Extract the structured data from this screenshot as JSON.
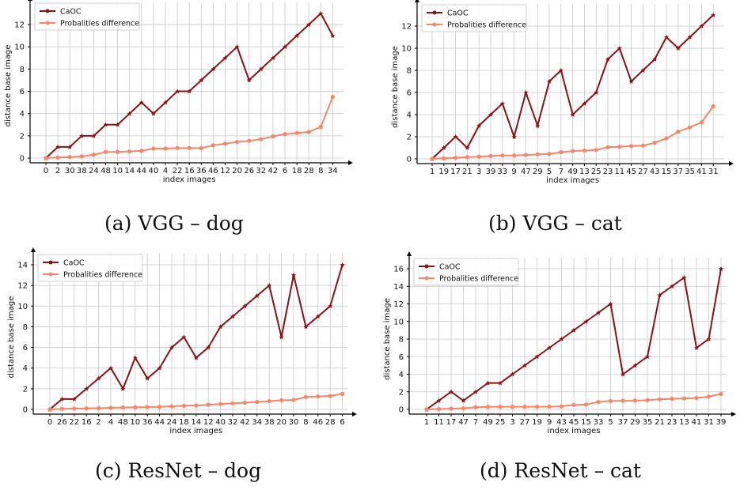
{
  "colors": {
    "caoc": "#8b1118",
    "prob": "#f7856a",
    "grid": "#c8c8c8",
    "axis": "#000000"
  },
  "chart_data": [
    {
      "type": "line",
      "caption": "(a) VGG – dog",
      "xlabel": "index images",
      "ylabel": "distance base image",
      "ylim": [
        0,
        13
      ],
      "yticks": [
        0,
        2,
        4,
        6,
        8,
        10,
        12
      ],
      "grid": true,
      "legend": "top-left",
      "categories": [
        "0",
        "2",
        "30",
        "38",
        "24",
        "48",
        "10",
        "14",
        "44",
        "40",
        "4",
        "22",
        "16",
        "36",
        "46",
        "12",
        "20",
        "26",
        "32",
        "42",
        "6",
        "18",
        "28",
        "8",
        "34"
      ],
      "series": [
        {
          "name": "CaOC",
          "values": [
            0,
            1,
            1,
            2,
            2,
            3,
            3,
            4,
            5,
            4,
            5,
            6,
            6,
            7,
            8,
            9,
            10,
            7,
            8,
            9,
            10,
            11,
            12,
            13,
            11
          ]
        },
        {
          "name": "Probalities difference",
          "values": [
            0,
            0.05,
            0.1,
            0.15,
            0.3,
            0.55,
            0.55,
            0.6,
            0.65,
            0.85,
            0.85,
            0.9,
            0.9,
            0.9,
            1.15,
            1.3,
            1.45,
            1.55,
            1.7,
            1.95,
            2.15,
            2.25,
            2.35,
            2.8,
            5.5
          ]
        }
      ]
    },
    {
      "type": "line",
      "caption": "(b) VGG – cat",
      "xlabel": "index images",
      "ylabel": "distance base image",
      "ylim": [
        0,
        13
      ],
      "yticks": [
        0,
        2,
        4,
        6,
        8,
        10,
        12
      ],
      "grid": true,
      "legend": "top-left",
      "categories": [
        "1",
        "19",
        "17",
        "21",
        "3",
        "39",
        "33",
        "9",
        "47",
        "29",
        "5",
        "7",
        "49",
        "13",
        "25",
        "23",
        "11",
        "45",
        "27",
        "43",
        "15",
        "37",
        "35",
        "41",
        "31"
      ],
      "series": [
        {
          "name": "CaOC",
          "values": [
            0,
            1,
            2,
            1,
            3,
            4,
            5,
            2,
            6,
            3,
            7,
            8,
            4,
            5,
            6,
            9,
            10,
            7,
            8,
            9,
            11,
            10,
            11,
            12,
            13
          ]
        },
        {
          "name": "Probalities difference",
          "values": [
            0,
            0.05,
            0.1,
            0.15,
            0.2,
            0.25,
            0.3,
            0.3,
            0.35,
            0.4,
            0.45,
            0.6,
            0.7,
            0.75,
            0.8,
            1.05,
            1.1,
            1.15,
            1.2,
            1.45,
            1.85,
            2.45,
            2.85,
            3.3,
            4.75
          ]
        }
      ]
    },
    {
      "type": "line",
      "caption": "(c) ResNet – dog",
      "xlabel": "index images",
      "ylabel": "distance base image",
      "ylim": [
        0,
        14
      ],
      "yticks": [
        0,
        2,
        4,
        6,
        8,
        10,
        12,
        14
      ],
      "grid": true,
      "legend": "top-left",
      "categories": [
        "0",
        "26",
        "22",
        "16",
        "2",
        "4",
        "48",
        "10",
        "36",
        "44",
        "24",
        "18",
        "14",
        "12",
        "40",
        "32",
        "42",
        "34",
        "38",
        "20",
        "30",
        "8",
        "46",
        "28",
        "6"
      ],
      "series": [
        {
          "name": "CaOC",
          "values": [
            0,
            1,
            1,
            2,
            3,
            4,
            2,
            5,
            3,
            4,
            6,
            7,
            5,
            6,
            8,
            9,
            10,
            11,
            12,
            7,
            13,
            8,
            9,
            10,
            14
          ]
        },
        {
          "name": "Probalities difference",
          "values": [
            0,
            0.05,
            0.08,
            0.1,
            0.12,
            0.15,
            0.18,
            0.2,
            0.22,
            0.25,
            0.3,
            0.35,
            0.38,
            0.45,
            0.52,
            0.58,
            0.65,
            0.72,
            0.8,
            0.88,
            0.92,
            1.2,
            1.25,
            1.3,
            1.5
          ]
        }
      ]
    },
    {
      "type": "line",
      "caption": "(d) ResNet – cat",
      "xlabel": "index images",
      "ylabel": "distance base image",
      "ylim": [
        0,
        16
      ],
      "yticks": [
        0,
        2,
        4,
        6,
        8,
        10,
        12,
        14,
        16
      ],
      "grid": true,
      "legend": "top-left",
      "categories": [
        "1",
        "11",
        "17",
        "47",
        "7",
        "49",
        "25",
        "3",
        "27",
        "19",
        "9",
        "43",
        "45",
        "15",
        "33",
        "5",
        "37",
        "29",
        "35",
        "21",
        "23",
        "13",
        "41",
        "31",
        "39"
      ],
      "series": [
        {
          "name": "CaOC",
          "values": [
            0,
            1,
            2,
            1,
            2,
            3,
            3,
            4,
            5,
            6,
            7,
            8,
            9,
            10,
            11,
            12,
            4,
            5,
            6,
            13,
            14,
            15,
            7,
            8,
            16
          ]
        },
        {
          "name": "Probalities difference",
          "values": [
            0,
            0.05,
            0.08,
            0.12,
            0.25,
            0.28,
            0.3,
            0.3,
            0.3,
            0.3,
            0.32,
            0.35,
            0.5,
            0.55,
            0.85,
            0.95,
            0.98,
            1.0,
            1.05,
            1.15,
            1.2,
            1.25,
            1.3,
            1.45,
            1.75
          ]
        }
      ]
    }
  ]
}
